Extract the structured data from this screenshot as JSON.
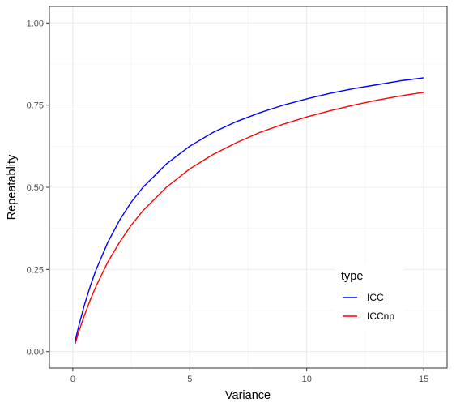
{
  "chart_data": {
    "type": "line",
    "xlabel": "Variance",
    "ylabel": "Repeatablity",
    "xlim": [
      -1,
      16
    ],
    "ylim": [
      -0.05,
      1.05
    ],
    "x_ticks": [
      0,
      5,
      10,
      15
    ],
    "x_tick_labels": [
      "0",
      "5",
      "10",
      "15"
    ],
    "y_ticks": [
      0,
      0.25,
      0.5,
      0.75,
      1.0
    ],
    "y_tick_labels": [
      "0.00",
      "0.25",
      "0.50",
      "0.75",
      "1.00"
    ],
    "grid": true,
    "legend": {
      "title": "type",
      "position": "bottom-right"
    },
    "x": [
      0.1,
      0.25,
      0.5,
      0.75,
      1,
      1.5,
      2,
      2.5,
      3,
      4,
      5,
      6,
      7,
      8,
      9,
      10,
      11,
      12,
      13,
      14,
      15
    ],
    "series": [
      {
        "name": "ICC",
        "color": "#0000ff",
        "values": [
          0.032,
          0.077,
          0.143,
          0.2,
          0.25,
          0.333,
          0.4,
          0.455,
          0.5,
          0.571,
          0.625,
          0.667,
          0.7,
          0.727,
          0.75,
          0.769,
          0.786,
          0.8,
          0.812,
          0.824,
          0.833
        ]
      },
      {
        "name": "ICCnp",
        "color": "#ff0000",
        "values": [
          0.024,
          0.06,
          0.111,
          0.158,
          0.2,
          0.273,
          0.333,
          0.385,
          0.429,
          0.5,
          0.556,
          0.6,
          0.636,
          0.667,
          0.692,
          0.714,
          0.733,
          0.75,
          0.765,
          0.778,
          0.789
        ]
      }
    ]
  }
}
